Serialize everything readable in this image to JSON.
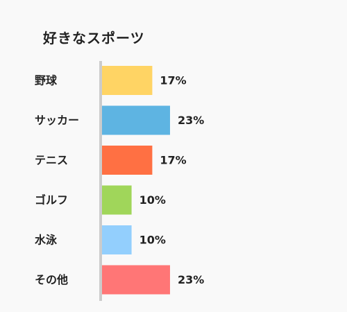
{
  "chart_data": {
    "type": "bar",
    "orientation": "horizontal",
    "title": "好きなスポーツ",
    "categories": [
      "野球",
      "サッカー",
      "テニス",
      "ゴルフ",
      "水泳",
      "その他"
    ],
    "values": [
      17,
      23,
      17,
      10,
      10,
      23
    ],
    "value_labels": [
      "17%",
      "23%",
      "17%",
      "10%",
      "10%",
      "23%"
    ],
    "unit": "%",
    "colors": [
      "#ffd464",
      "#5eb4e2",
      "#ff7043",
      "#a0d65a",
      "#93cffd",
      "#ff7676"
    ],
    "axis_color": "#cccccc",
    "grid": false,
    "legend": "none"
  }
}
